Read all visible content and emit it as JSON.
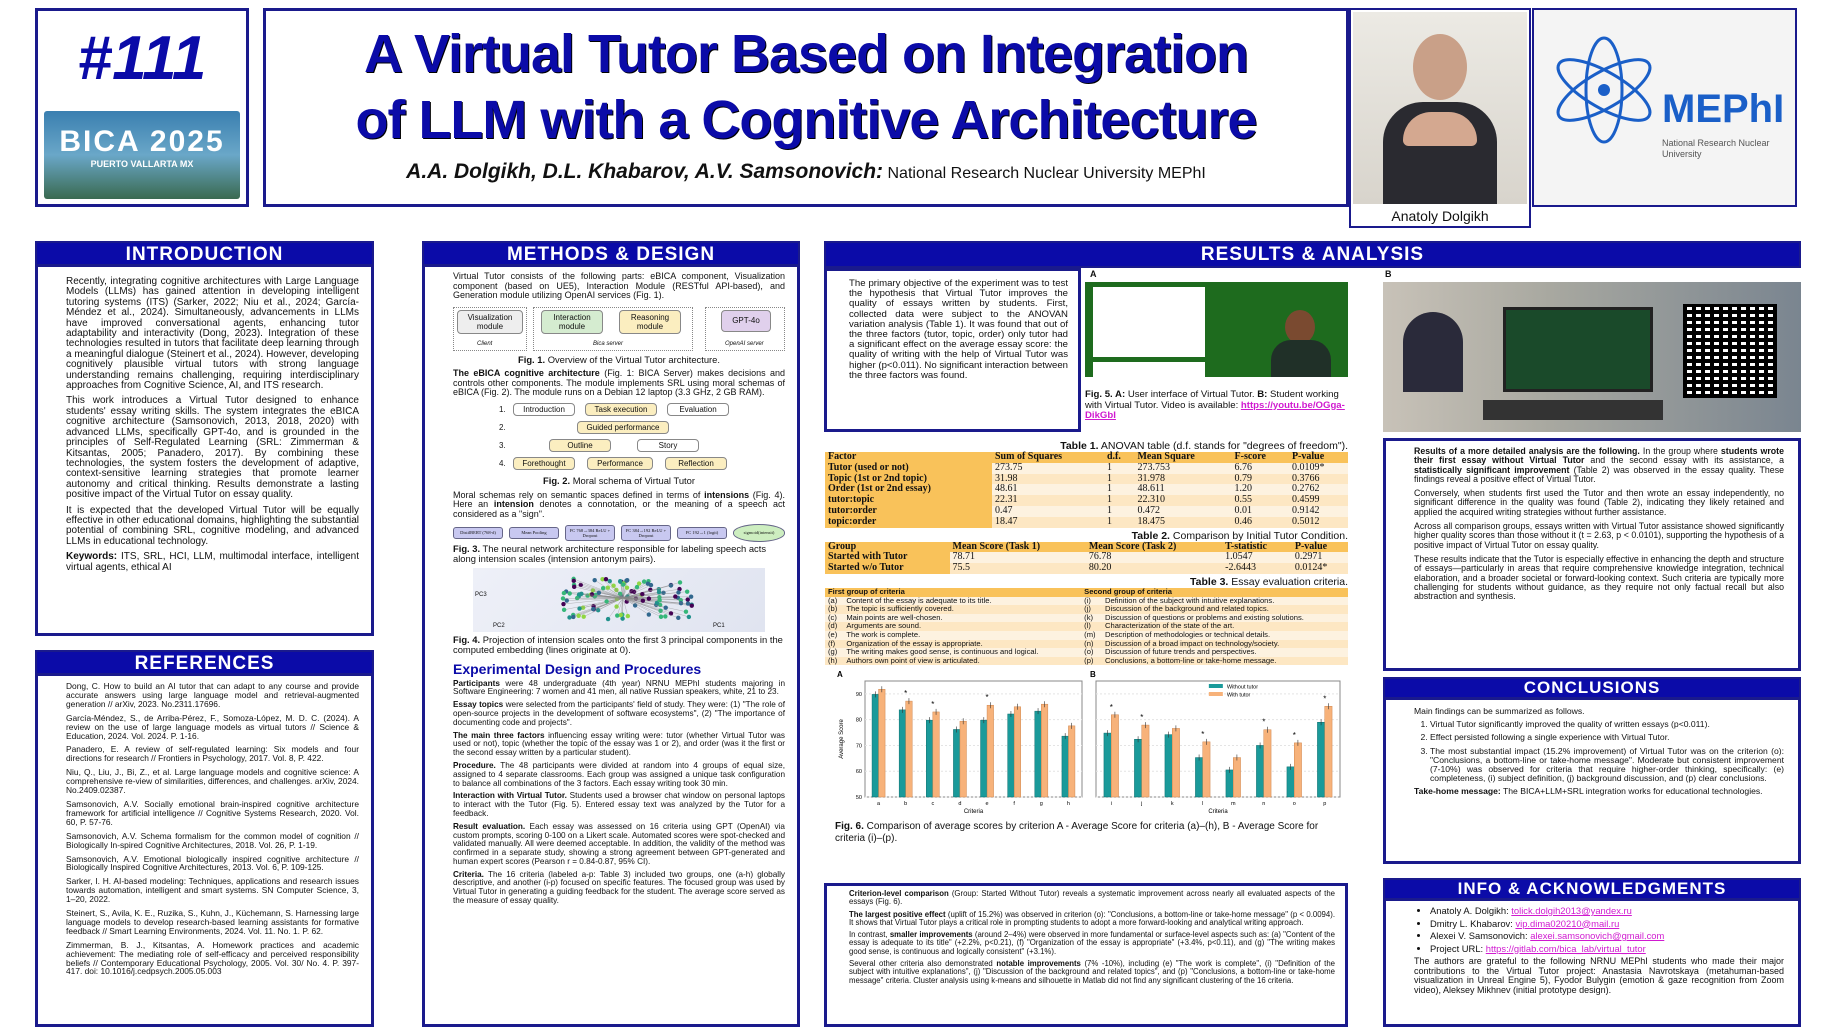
{
  "header": {
    "poster_number": "#111",
    "conference_logo": "BICA 2025",
    "conference_location": "PUERTO VALLARTA MX",
    "title_line1": "A Virtual Tutor Based on Integration",
    "title_line2": "of LLM with a Cognitive Architecture",
    "authors": "A.A. Dolgikh, D.L. Khabarov, A.V. Samsonovich:",
    "affiliation": "National Research Nuclear University MEPhI",
    "photo_caption": "Anatoly Dolgikh",
    "university_logo": "MEPhI",
    "university_logo_sub": "National Research Nuclear University"
  },
  "introduction": {
    "heading": "INTRODUCTION",
    "paragraphs": [
      "Recently, integrating cognitive architectures with Large Language Models (LLMs) has gained attention in developing intelligent tutoring systems (ITS) (Sarker, 2022; Niu et al., 2024; García-Méndez et al., 2024). Simultaneously, advancements in LLMs have improved conversational agents, enhancing tutor adaptability and interactivity (Dong, 2023). Integration of these technologies resulted in tutors that facilitate deep learning through a meaningful dialogue (Steinert et al., 2024). However, developing cognitively plausible virtual tutors with strong language understanding remains challenging, requiring interdisciplinary approaches from Cognitive Science, AI, and ITS research.",
      "This work introduces a Virtual Tutor designed to enhance students' essay writing skills. The system integrates the eBICA cognitive architecture (Samsonovich, 2013, 2018, 2020) with advanced LLMs, specifically GPT-4o, and is grounded in the principles of Self-Regulated Learning (SRL: Zimmerman & Kitsantas, 2005; Panadero, 2017). By combining these technologies, the system fosters the development of adaptive, context-sensitive learning strategies that promote learner autonomy and critical thinking. Results demonstrate a lasting positive impact of the Virtual Tutor on essay quality.",
      "It is expected that the developed Virtual Tutor will be equally effective in other educational domains, highlighting the substantial potential of combining SRL, cognitive modeling, and advanced LLMs in educational technology."
    ],
    "keywords_label": "Keywords:",
    "keywords": " ITS, SRL, HCI, LLM, multimodal interface, intelligent virtual agents, ethical AI"
  },
  "references": {
    "heading": "REFERENCES",
    "items": [
      "Dong, C. How to build an AI tutor that can adapt to any course and provide accurate answers using large language model and retrieval-augmented generation // arXiv, 2023. No.2311.17696.",
      "García-Méndez, S., de Arriba-Pérez, F., Somoza-López, M. D. C. (2024). A review on the use of large language models as virtual tutors // Science & Education, 2024. Vol. 2024. P. 1-16.",
      "Panadero, E. A review of self-regulated learning: Six models and four directions for research // Frontiers in Psychology, 2017. Vol. 8, P. 422.",
      "Niu, Q., Liu, J., Bi, Z., et al. Large language models and cognitive science: A comprehensive re-view of similarities, differences, and challenges. arXiv, 2024. No.2409.02387.",
      "Samsonovich, A.V. Socially emotional brain-inspired cognitive architecture framework for artificial intelligence // Cognitive Systems Research, 2020. Vol. 60, P. 57-76.",
      "Samsonovich, A.V. Schema formalism for the common model of cognition // Biologically In-spired Cognitive Architectures, 2018. Vol. 26, P. 1-19.",
      "Samsonovich, A.V. Emotional biologically inspired cognitive architecture // Biologically Inspired Cognitive Architectures, 2013. Vol. 6, P. 109-125.",
      "Sarker, I. H. AI-based modeling: Techniques, applications and research issues towards automation, intelligent and smart systems. SN Computer Science, 3, 1–20, 2022.",
      "Steinert, S., Avila, K. E., Ruzika, S., Kuhn, J., Küchemann, S. Harnessing large language models to develop research-based learning assistants for formative feedback // Smart Learning Environments, 2024. Vol. 11. No. 1. P. 62.",
      "Zimmerman, B. J., Kitsantas, A. Homework practices and academic achievement: The mediating role of self-efficacy and perceived responsibility beliefs // Contemporary Educational Psychology, 2005. Vol. 30/ No. 4. P. 397-417. doi: 10.1016/j.cedpsych.2005.05.003"
    ]
  },
  "methods": {
    "heading": "METHODS & DESIGN",
    "intro": "Virtual Tutor consists of the following parts: eBICA component, Visualization component (based on UE5), Interaction Module (RESTful API-based), and Generation module utilizing OpenAI services (Fig. 1).",
    "fig1": {
      "visualization": "Visualization module",
      "interaction": "Interaction module",
      "reasoning": "Reasoning module",
      "gpt": "GPT-4o",
      "client": "Client",
      "bica_server": "Bica server",
      "openai_server": "OpenAI server",
      "caption_label": "Fig. 1.",
      "caption": " Overview of the Virtual Tutor architecture."
    },
    "ebica_bold": "The eBICA cognitive architecture",
    "ebica_text": " (Fig. 1: BICA Server) makes decisions and controls other components. The module implements SRL using moral schemas of eBICA (Fig. 2). The module runs on a Debian 12 laptop (3.3 GHz, 2 GB RAM).",
    "fig2": {
      "rows": [
        "1.",
        "2.",
        "3.",
        "4."
      ],
      "introduction": "Introduction",
      "task_execution": "Task execution",
      "evaluation": "Evaluation",
      "guided": "Guided performance",
      "outline": "Outline",
      "story": "Story",
      "forethought": "Forethought",
      "performance": "Performance",
      "reflection": "Reflection",
      "caption_label": "Fig. 2.",
      "caption": " Moral schema of Virtual Tutor"
    },
    "moral_text_1": "Moral schemas rely on semantic spaces defined in terms of ",
    "moral_bold_1": "intensions",
    "moral_text_2": " (Fig. 4). Here an ",
    "moral_bold_2": "intension",
    "moral_text_3": " denotes a connotation, or the meaning of a speech act considered as a \"sign\".",
    "fig3": {
      "nodes": [
        "DistilBERT (768-d)",
        "Mean Pooling",
        "FC 768→384 ReLU + Dropout",
        "FC 384→192 ReLU + Dropout",
        "FC 192→1 (logit)",
        "sigmoid(intensit)"
      ],
      "caption_label": "Fig. 3.",
      "caption": " The neural network architecture responsible for labeling speech acts along intension scales (intension antonym pairs)."
    },
    "fig4": {
      "axis_pc1": "PC1",
      "axis_pc2": "PC2",
      "axis_pc3": "PC3",
      "caption_label": "Fig. 4.",
      "caption": " Projection of intension scales onto the first 3 principal components in the computed embedding (lines originate at 0)."
    },
    "subheading": "Experimental Design and Procedures",
    "paras": [
      {
        "bold": "Participants",
        "text": " were 48 undergraduate (4th year) NRNU MEPhI students majoring in Software Engineering: 7 women and 41 men, all native Russian speakers, white, 21 to 23."
      },
      {
        "bold": "Essay topics",
        "text": " were selected from the participants' field of study. They were: (1) \"The role of open-source projects in the development of software ecosystems\", (2) \"The importance of documenting code and projects\"."
      },
      {
        "bold": "The main three factors",
        "text": " influencing essay writing were: tutor (whether Virtual Tutor was used or not), topic (whether the topic of the essay was 1 or 2), and order (was it the first or the second essay written by a particular student)."
      },
      {
        "bold": "Procedure.",
        "text": " The 48 participants were divided at random into 4 groups of equal size, assigned to 4 separate classrooms. Each group was assigned a unique task configuration to balance all combinations of the 3 factors. Each essay writing took 30 min."
      },
      {
        "bold": "Interaction with Virtual Tutor.",
        "text": " Students used a browser chat window on personal laptops to interact with the Tutor (Fig. 5). Entered essay text was analyzed by the Tutor for a feedback."
      },
      {
        "bold": "Result evaluation.",
        "text": " Each essay was assessed on 16 criteria using GPT (OpenAI) via custom prompts, scoring 0-100 on a Likert scale. Automated scores were spot-checked and validated manually. All were deemed acceptable. In addition, the validity of the method was confirmed in a separate study, showing a strong agreement between GPT-generated and human expert scores (Pearson r = 0.84-0.87, 95% CI)."
      },
      {
        "bold": "Criteria.",
        "text": " The 16 criteria (labeled a-p: Table 3) included two groups, one (a-h) globally descriptive, and another (i-p) focused on specific features. The focused group was used by Virtual Tutor in generating a guiding feedback for the student. The average score served as the measure of essay quality."
      }
    ]
  },
  "results": {
    "heading": "RESULTS & ANALYSIS",
    "objective": "The primary objective of the experiment was to test the hypothesis that Virtual Tutor improves the quality of essays written by students. First, collected data were subject to the ANOVAN variation analysis (Table 1). It was found that out of the three factors (tutor, topic, order) only tutor had a significant effect on the average essay score: the quality of writing with the help of Virtual Tutor was higher (p<0.011). No significant interaction between the three factors was found.",
    "fig5": {
      "label_a": "A",
      "label_b": "B",
      "caption_label_a": "Fig. 5. A:",
      "caption_a": " User interface of Virtual Tutor. ",
      "caption_label_b": "B:",
      "caption_b": " Student working with Virtual Tutor. Video is available: ",
      "link": "https://youtu.be/OGga-DikGbI"
    },
    "table1": {
      "caption_label": "Table 1.",
      "caption": " ANOVAN table (d.f. stands for \"degrees of freedom\").",
      "columns": [
        "Factor",
        "Sum of Squares",
        "d.f.",
        "Mean Square",
        "F-score",
        "P-value"
      ],
      "rows": [
        [
          "Tutor (used or not)",
          "273.75",
          "1",
          "273.753",
          "6.76",
          "0.0109*"
        ],
        [
          "Topic (1st or 2nd topic)",
          "31.98",
          "1",
          "31.978",
          "0.79",
          "0.3766"
        ],
        [
          "Order (1st or 2nd essay)",
          "48.61",
          "1",
          "48.611",
          "1.20",
          "0.2762"
        ],
        [
          "tutor:topic",
          "22.31",
          "1",
          "22.310",
          "0.55",
          "0.4599"
        ],
        [
          "tutor:order",
          "0.47",
          "1",
          "0.472",
          "0.01",
          "0.9142"
        ],
        [
          "topic:order",
          "18.47",
          "1",
          "18.475",
          "0.46",
          "0.5012"
        ]
      ]
    },
    "table2": {
      "caption_label": "Table 2.",
      "caption": " Comparison by Initial Tutor Condition.",
      "columns": [
        "Group",
        "Mean Score (Task 1)",
        "Mean Score (Task 2)",
        "T-statistic",
        "P-value"
      ],
      "rows": [
        [
          "Started with Tutor",
          "78.71",
          "76.78",
          "1.0547",
          "0.2971"
        ],
        [
          "Started w/o Tutor",
          "75.5",
          "80.20",
          "-2.6443",
          "0.0124*"
        ]
      ]
    },
    "table3": {
      "caption_label": "Table 3.",
      "caption": " Essay evaluation criteria.",
      "columns": [
        "First group of criteria",
        "Second group of criteria"
      ],
      "rows": [
        [
          "(a)",
          "Content of the essay is adequate to its title.",
          "(i)",
          "Definition of the subject with intuitive explanations."
        ],
        [
          "(b)",
          "The topic is sufficiently covered.",
          "(j)",
          "Discussion of the background and related topics."
        ],
        [
          "(c)",
          "Main points are well-chosen.",
          "(k)",
          "Discussion of questions or problems and existing solutions."
        ],
        [
          "(d)",
          "Arguments are sound.",
          "(l)",
          "Characterization of the state of the art."
        ],
        [
          "(e)",
          "The work is complete.",
          "(m)",
          "Description of methodologies or technical details."
        ],
        [
          "(f)",
          "Organization of the essay is appropriate.",
          "(n)",
          "Discussion of a broad impact on technology/society."
        ],
        [
          "(g)",
          "The writing makes good sense, is continuous and logical.",
          "(o)",
          "Discussion of future trends and perspectives."
        ],
        [
          "(h)",
          "Authors own point of view is articulated.",
          "(p)",
          "Conclusions, a bottom-line or take-home message."
        ]
      ]
    },
    "fig6": {
      "caption_label": "Fig. 6.",
      "caption": " Comparison of average scores by criterion A - Average Score for criteria (a)–(h), B - Average Score for criteria (i)–(p)."
    },
    "detail": [
      "<b>Results of a more detailed analysis are the following.</b> In the group where <b>students wrote their first essay without Virtual Tutor</b> and the second essay with its assistance, a <b>statistically significant improvement</b> (Table 2) was observed in the essay quality. These findings reveal a positive effect of Virtual Tutor.",
      "Conversely, when students first used the Tutor and then wrote an essay independently, no significant difference in the quality was found (Table 2), indicating they likely retained and applied the acquired writing strategies without further assistance.",
      "Across all comparison groups, essays written with Virtual Tutor assistance showed significantly higher quality scores than those without it (t = 2.63, p < 0.0101), supporting the hypothesis of a positive impact of Virtual Tutor on essay quality.",
      "These results indicate that the Tutor is especially effective in enhancing the depth and structure of essays—particularly in areas that require comprehensive knowledge integration, technical elaboration, and a broader societal or forward-looking context. Such criteria are typically more challenging for students without guidance, as they require not only factual recall but also abstraction and synthesis."
    ],
    "criterion": [
      "<b>Criterion-level comparison</b> (Group: Started Without Tutor) reveals a systematic improvement across nearly all evaluated aspects of the essays (Fig. 6).",
      "<b>The largest positive effect</b> (uplift of 15.2%) was observed in criterion (o): \"Conclusions, a bottom-line or take-home message\" (p < 0.0094). It shows that Virtual Tutor plays a critical role in prompting students to adopt a more forward-looking and analytical writing approach.",
      "In contrast, <b>smaller improvements</b> (around 2–4%) were observed in more fundamental or surface-level aspects such as: (a) \"Content of the essay is adequate to its title\" (+2.2%, p<0.21), (f) \"Organization of the essay is appropriate\" (+3.4%, p<0.11), and (g) \"The writing makes good sense, is continuous and logically consistent\" (+3.1%).",
      "Several other criteria also demonstrated <b>notable improvements</b> (7% -10%), including (e) \"The work is complete\", (i) \"Definition of the subject with intuitive explanations\", (j) \"Discussion of the background and related topics\", and (p) \"Conclusions, a bottom-line or take-home message\" criteria. Cluster analysis using k-means and silhouette in Matlab did not find any significant clustering of the 16 criteria."
    ]
  },
  "conclusions": {
    "heading": "CONCLUSIONS",
    "intro": "Main findings can be summarized as follows.",
    "items": [
      "Virtual Tutor significantly improved the quality of written essays (p<0.011).",
      "Effect persisted following a single experience with Virtual Tutor.",
      "The most substantial impact (15.2% improvement) of Virtual Tutor was on the criterion (o): \"Conclusions, a bottom-line or take-home message\". Moderate but consistent improvement (7-10%) was observed for criteria that require higher-order thinking, specifically: (e) completeness, (i) subject definition, (j) background discussion, and (p) clear conclusions."
    ],
    "takehome_label": "Take-home message:",
    "takehome": "  The BICA+LLM+SRL integration works for educational technologies."
  },
  "info": {
    "heading": "INFO & ACKNOWLEDGMENTS",
    "contacts": [
      {
        "label": "Anatoly A. Dolgikh:",
        "value": "tolick.dolgih2013@yandex.ru"
      },
      {
        "label": "Dmitry L. Khabarov:",
        "value": "vip.dima020210@mail.ru"
      },
      {
        "label": "Alexei V. Samsonovich:",
        "value": "alexei.samsonovich@gmail.com"
      },
      {
        "label": "Project URL:",
        "value": "https://gitlab.com/bica_lab/virtual_tutor"
      }
    ],
    "ack": "The authors are grateful to the following NRNU MEPhI students who made their major contributions to the Virtual Tutor project: Anastasia Navrotskaya (metahuman-based visualization in Unreal Engine 5), Fyodor Bulygin (emotion & gaze recognition from Zoom video), Aleksey Mikhnev (initial prototype design)."
  },
  "colors": {
    "navy": "#0b0ba8",
    "without_tutor": "#1a9a9a",
    "with_tutor": "#f7b27a",
    "table_header": "#f9c25a"
  },
  "chart_data": [
    {
      "type": "bar",
      "panel_label": "A",
      "xlabel": "Criteria",
      "ylabel": "Average Score",
      "ylim": [
        50,
        95
      ],
      "yticks": [
        50,
        60,
        70,
        80,
        90
      ],
      "grid": true,
      "categories": [
        "a",
        "b",
        "c",
        "d",
        "e",
        "f",
        "g",
        "h"
      ],
      "significant": [
        "b",
        "c",
        "e"
      ],
      "series": [
        {
          "name": "Without tutor",
          "values": [
            89.8,
            83.8,
            79.8,
            76.2,
            79.8,
            82.2,
            83.3,
            73.6
          ]
        },
        {
          "name": "With tutor",
          "values": [
            91.8,
            87.2,
            83.0,
            79.4,
            85.6,
            85.0,
            86.0,
            77.6
          ]
        }
      ]
    },
    {
      "type": "bar",
      "panel_label": "B",
      "xlabel": "Criteria",
      "ylim": [
        50,
        95
      ],
      "grid": true,
      "legend": "top-right",
      "categories": [
        "i",
        "j",
        "k",
        "l",
        "m",
        "n",
        "o",
        "p"
      ],
      "significant": [
        "i",
        "j",
        "l",
        "n",
        "o",
        "p"
      ],
      "series": [
        {
          "name": "Without tutor",
          "values": [
            74.8,
            72.4,
            74.2,
            65.3,
            60.5,
            70.0,
            61.7,
            79.0
          ]
        },
        {
          "name": "With tutor",
          "values": [
            81.9,
            77.9,
            76.6,
            71.4,
            65.3,
            76.1,
            71.0,
            85.2
          ]
        }
      ]
    }
  ]
}
